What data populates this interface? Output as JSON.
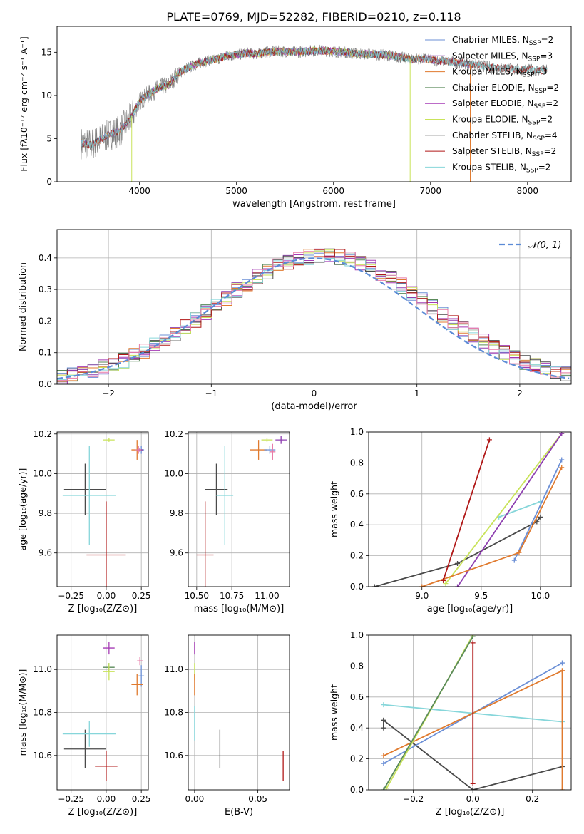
{
  "title": "PLATE=0769, MJD=52282, FIBERID=0210, z=0.118",
  "colors": {
    "chabrier_miles": "#6b8fd6",
    "salpeter_miles": "#8e3fb0",
    "kroupa_miles": "#e07a2e",
    "chabrier_elodie": "#5a8a5a",
    "salpeter_elodie": "#a53bb5",
    "kroupa_elodie": "#c9e35a",
    "chabrier_stelib": "#4a4a4a",
    "salpeter_stelib": "#b01818",
    "kroupa_stelib": "#86d6da",
    "gauss": "#5b8bd6",
    "pink": "#e87aa6"
  },
  "chart_data": [
    {
      "type": "line",
      "panel": "spectrum",
      "xlabel": "wavelength [Angstrom, rest frame]",
      "ylabel": "Flux [fλ10⁻¹⁷ erg cm⁻² s⁻¹ A⁻¹]",
      "xlim": [
        3150,
        8450
      ],
      "ylim": [
        0,
        18
      ],
      "xticks": [
        "4000",
        "5000",
        "6000",
        "7000",
        "8000"
      ],
      "yticks": [
        "0",
        "5",
        "10",
        "15"
      ],
      "legend_position": "top-right",
      "legend": [
        {
          "label": "Chabrier MILES, N",
          "sub": "SSP",
          "val": "=2"
        },
        {
          "label": "Salpeter MILES, N",
          "sub": "SSP",
          "val": "=3"
        },
        {
          "label": "Kroupa MILES, N",
          "sub": "SSP",
          "val": "=3"
        },
        {
          "label": "Chabrier ELODIE, N",
          "sub": "SSP",
          "val": "=2"
        },
        {
          "label": "Salpeter ELODIE, N",
          "sub": "SSP",
          "val": "=2"
        },
        {
          "label": "Kroupa ELODIE, N",
          "sub": "SSP",
          "val": "=2"
        },
        {
          "label": "Chabrier STELIB, N",
          "sub": "SSP",
          "val": "=4"
        },
        {
          "label": "Salpeter STELIB, N",
          "sub": "SSP",
          "val": "=2"
        },
        {
          "label": "Kroupa STELIB, N",
          "sub": "SSP",
          "val": "=2"
        }
      ],
      "continuum": [
        [
          3400,
          4.5
        ],
        [
          3500,
          4.3
        ],
        [
          3600,
          4.9
        ],
        [
          3700,
          5.5
        ],
        [
          3800,
          5.9
        ],
        [
          3900,
          7.2
        ],
        [
          3950,
          8.2
        ],
        [
          4000,
          9.3
        ],
        [
          4100,
          10.2
        ],
        [
          4200,
          10.9
        ],
        [
          4300,
          11.2
        ],
        [
          4400,
          12.6
        ],
        [
          4500,
          13.2
        ],
        [
          4600,
          13.7
        ],
        [
          4700,
          14.0
        ],
        [
          4800,
          14.2
        ],
        [
          4900,
          14.6
        ],
        [
          5000,
          14.7
        ],
        [
          5100,
          14.9
        ],
        [
          5200,
          14.8
        ],
        [
          5300,
          15.0
        ],
        [
          5400,
          15.1
        ],
        [
          5500,
          15.1
        ],
        [
          5600,
          15.0
        ],
        [
          5700,
          15.1
        ],
        [
          5800,
          15.2
        ],
        [
          5900,
          15.2
        ],
        [
          6000,
          15.1
        ],
        [
          6100,
          15.0
        ],
        [
          6200,
          14.9
        ],
        [
          6300,
          14.8
        ],
        [
          6400,
          14.8
        ],
        [
          6500,
          14.7
        ],
        [
          6600,
          14.6
        ],
        [
          6700,
          14.4
        ],
        [
          6800,
          14.2
        ],
        [
          6900,
          14.3
        ],
        [
          7000,
          14.1
        ],
        [
          7100,
          14.0
        ],
        [
          7200,
          13.9
        ],
        [
          7300,
          13.8
        ],
        [
          7400,
          13.6
        ],
        [
          7500,
          13.5
        ],
        [
          7600,
          13.3
        ],
        [
          7700,
          13.2
        ],
        [
          7800,
          13.1
        ],
        [
          7900,
          13.0
        ],
        [
          8000,
          13.0
        ],
        [
          8100,
          12.9
        ],
        [
          8200,
          12.9
        ]
      ]
    },
    {
      "type": "line",
      "panel": "residual-histogram",
      "xlabel": "(data-model)/error",
      "ylabel": "Normed distribution",
      "xlim": [
        -2.5,
        2.5
      ],
      "ylim": [
        0,
        0.49
      ],
      "xticks": [
        "−2",
        "−1",
        "0",
        "1",
        "2"
      ],
      "yticks": [
        "0.0",
        "0.1",
        "0.2",
        "0.3",
        "0.4"
      ],
      "grid": true,
      "legend_position": "top-right",
      "legend_label": "𝒩(0, 1)",
      "gaussian": {
        "mean": 0,
        "sigma": 1
      },
      "bin_width": 0.1
    },
    {
      "type": "scatter",
      "panel": "age-vs-Z",
      "xlabel": "Z [log₁₀(Z/Z⊙)]",
      "ylabel": "age  [log₁₀(age/yr)]",
      "xlim": [
        -0.35,
        0.3
      ],
      "ylim": [
        9.43,
        10.21
      ],
      "xticks": [
        "−0.25",
        "0.00",
        "0.25"
      ],
      "yticks": [
        "9.6",
        "9.8",
        "10.0",
        "10.2"
      ],
      "grid": true,
      "points": [
        {
          "c": "chabrier_stelib",
          "x": -0.15,
          "y": 9.92,
          "xerr": 0.15,
          "yerr": 0.13
        },
        {
          "c": "kroupa_stelib",
          "x": -0.12,
          "y": 9.89,
          "xerr": 0.19,
          "yerr": 0.25
        },
        {
          "c": "salpeter_stelib",
          "x": 0.0,
          "y": 9.59,
          "xerr": 0.14,
          "yerr": 0.27
        },
        {
          "c": "kroupa_elodie",
          "x": 0.02,
          "y": 10.17,
          "xerr": 0.04,
          "yerr": 0.01
        },
        {
          "c": "kroupa_miles",
          "x": 0.22,
          "y": 10.12,
          "xerr": 0.04,
          "yerr": 0.05
        },
        {
          "c": "chabrier_miles",
          "x": 0.25,
          "y": 10.12,
          "xerr": 0.02,
          "yerr": 0.02
        },
        {
          "c": "salpeter_miles",
          "x": 0.24,
          "y": 10.12,
          "xerr": 0.02,
          "yerr": 0.01
        },
        {
          "c": "pink",
          "x": 0.23,
          "y": 10.12,
          "xerr": 0.02,
          "yerr": 0.02
        }
      ]
    },
    {
      "type": "scatter",
      "panel": "age-vs-mass",
      "xlabel": "mass [log₁₀(M/M⊙)]",
      "ylabel": "",
      "xlim": [
        10.44,
        11.16
      ],
      "ylim": [
        9.43,
        10.21
      ],
      "xticks": [
        "10.50",
        "10.75",
        "11.00"
      ],
      "yticks": [
        "9.6",
        "9.8",
        "10.0",
        "10.2"
      ],
      "grid": true,
      "points": [
        {
          "c": "chabrier_stelib",
          "x": 10.64,
          "y": 9.92,
          "xerr": 0.08,
          "yerr": 0.13
        },
        {
          "c": "kroupa_stelib",
          "x": 10.7,
          "y": 9.89,
          "xerr": 0.06,
          "yerr": 0.25
        },
        {
          "c": "salpeter_stelib",
          "x": 10.56,
          "y": 9.59,
          "xerr": 0.06,
          "yerr": 0.27
        },
        {
          "c": "kroupa_elodie",
          "x": 11.0,
          "y": 10.17,
          "xerr": 0.04,
          "yerr": 0.01
        },
        {
          "c": "kroupa_miles",
          "x": 10.94,
          "y": 10.12,
          "xerr": 0.06,
          "yerr": 0.05
        },
        {
          "c": "chabrier_miles",
          "x": 11.02,
          "y": 10.12,
          "xerr": 0.04,
          "yerr": 0.02
        },
        {
          "c": "salpeter_miles",
          "x": 11.1,
          "y": 10.17,
          "xerr": 0.04,
          "yerr": 0.02
        },
        {
          "c": "pink",
          "x": 11.04,
          "y": 10.11,
          "xerr": 0.02,
          "yerr": 0.04
        }
      ]
    },
    {
      "type": "line",
      "panel": "massweight-vs-age",
      "xlabel": "age  [log₁₀(age/yr)]",
      "ylabel": "mass weight",
      "xlim": [
        8.55,
        10.26
      ],
      "ylim": [
        0,
        1
      ],
      "xticks": [
        "9.0",
        "9.5",
        "10.0"
      ],
      "yticks": [
        "0.0",
        "0.2",
        "0.4",
        "0.6",
        "0.8",
        "1.0"
      ],
      "grid": true,
      "series": [
        {
          "c": "chabrier_stelib",
          "x": [
            8.6,
            9.3,
            9.97,
            10.0
          ],
          "y": [
            0.0,
            0.15,
            0.42,
            0.45
          ]
        },
        {
          "c": "kroupa_stelib",
          "x": [
            9.65,
            10.0
          ],
          "y": [
            0.45,
            0.55
          ]
        },
        {
          "c": "kroupa_elodie",
          "x": [
            9.2,
            10.18
          ],
          "y": [
            0.02,
            0.99
          ]
        },
        {
          "c": "salpeter_miles",
          "x": [
            9.3,
            10.18
          ],
          "y": [
            0.0,
            0.99
          ]
        },
        {
          "c": "chabrier_miles",
          "x": [
            9.78,
            10.18
          ],
          "y": [
            0.17,
            0.82
          ]
        },
        {
          "c": "kroupa_miles",
          "x": [
            9.0,
            9.82,
            10.18
          ],
          "y": [
            0.0,
            0.22,
            0.77
          ]
        },
        {
          "c": "salpeter_stelib",
          "x": [
            9.18,
            9.57
          ],
          "y": [
            0.04,
            0.95
          ]
        }
      ]
    },
    {
      "type": "scatter",
      "panel": "mass-vs-Z",
      "xlabel": "Z [log₁₀(Z/Z⊙)]",
      "ylabel": "mass [log₁₀(M/M⊙)]",
      "xlim": [
        -0.35,
        0.3
      ],
      "ylim": [
        10.44,
        11.16
      ],
      "xticks": [
        "−0.25",
        "0.00",
        "0.25"
      ],
      "yticks": [
        "10.6",
        "10.8",
        "11.0"
      ],
      "grid": true,
      "points": [
        {
          "c": "chabrier_stelib",
          "x": -0.15,
          "y": 10.63,
          "xerr": 0.15,
          "yerr": 0.09
        },
        {
          "c": "kroupa_stelib",
          "x": -0.12,
          "y": 10.7,
          "xerr": 0.19,
          "yerr": 0.06
        },
        {
          "c": "salpeter_stelib",
          "x": 0.0,
          "y": 10.55,
          "xerr": 0.08,
          "yerr": 0.07
        },
        {
          "c": "salpeter_elodie",
          "x": 0.02,
          "y": 11.1,
          "xerr": 0.04,
          "yerr": 0.03
        },
        {
          "c": "chabrier_elodie",
          "x": 0.02,
          "y": 11.01,
          "xerr": 0.04,
          "yerr": 0.02
        },
        {
          "c": "kroupa_elodie",
          "x": 0.02,
          "y": 10.99,
          "xerr": 0.04,
          "yerr": 0.04
        },
        {
          "c": "pink",
          "x": 0.24,
          "y": 11.04,
          "xerr": 0.02,
          "yerr": 0.02
        },
        {
          "c": "chabrier_miles",
          "x": 0.25,
          "y": 10.97,
          "xerr": 0.02,
          "yerr": 0.05
        },
        {
          "c": "kroupa_miles",
          "x": 0.22,
          "y": 10.93,
          "xerr": 0.04,
          "yerr": 0.05
        }
      ]
    },
    {
      "type": "scatter",
      "panel": "mass-vs-EBV",
      "xlabel": "E(B-V)",
      "ylabel": "",
      "xlim": [
        -0.005,
        0.075
      ],
      "ylim": [
        10.44,
        11.16
      ],
      "xticks": [
        "0.00",
        "0.05"
      ],
      "yticks": [
        "10.6",
        "10.8",
        "11.0"
      ],
      "grid": true,
      "points": [
        {
          "c": "chabrier_stelib",
          "x": 0.02,
          "y": 10.63,
          "xerr": 0,
          "yerr": 0.09
        },
        {
          "c": "salpeter_stelib",
          "x": 0.07,
          "y": 10.55,
          "xerr": 0,
          "yerr": 0.07
        },
        {
          "c": "kroupa_stelib",
          "x": 0.0,
          "y": 10.75,
          "xerr": 0,
          "yerr": 0.08
        },
        {
          "c": "salpeter_elodie",
          "x": 0.0,
          "y": 11.1,
          "xerr": 0,
          "yerr": 0.03
        },
        {
          "c": "kroupa_elodie",
          "x": 0.0,
          "y": 10.99,
          "xerr": 0,
          "yerr": 0.04
        },
        {
          "c": "kroupa_miles",
          "x": 0.0,
          "y": 10.93,
          "xerr": 0,
          "yerr": 0.05
        }
      ]
    },
    {
      "type": "line",
      "panel": "massweight-vs-Z",
      "xlabel": "Z [log₁₀(Z/Z⊙)]",
      "ylabel": "mass weight",
      "xlim": [
        -0.35,
        0.33
      ],
      "ylim": [
        0,
        1
      ],
      "xticks": [
        "−0.2",
        "0.0",
        "0.2"
      ],
      "yticks": [
        "0.0",
        "0.2",
        "0.4",
        "0.6",
        "0.8",
        "1.0"
      ],
      "grid": true,
      "series": [
        {
          "c": "kroupa_stelib",
          "x": [
            -0.3,
            0.3
          ],
          "y": [
            0.55,
            0.44
          ]
        },
        {
          "c": "chabrier_stelib",
          "x": [
            -0.3,
            0.0,
            0.3
          ],
          "y": [
            0.45,
            0.0,
            0.15
          ]
        },
        {
          "c": "chabrier_stelib",
          "x": [
            -0.3,
            -0.3
          ],
          "y": [
            0.4,
            0.45
          ]
        },
        {
          "c": "chabrier_miles",
          "x": [
            -0.3,
            0.3
          ],
          "y": [
            0.17,
            0.82
          ]
        },
        {
          "c": "kroupa_miles",
          "x": [
            -0.3,
            0.3
          ],
          "y": [
            0.22,
            0.77
          ]
        },
        {
          "c": "kroupa_miles",
          "x": [
            0.3,
            0.3
          ],
          "y": [
            0.0,
            0.77
          ]
        },
        {
          "c": "kroupa_elodie",
          "x": [
            -0.29,
            0.0
          ],
          "y": [
            0.01,
            1.0
          ]
        },
        {
          "c": "chabrier_elodie",
          "x": [
            -0.3,
            0.0
          ],
          "y": [
            0.0,
            0.99
          ]
        },
        {
          "c": "salpeter_stelib",
          "x": [
            0.0,
            0.0
          ],
          "y": [
            0.04,
            0.95
          ]
        }
      ]
    }
  ]
}
